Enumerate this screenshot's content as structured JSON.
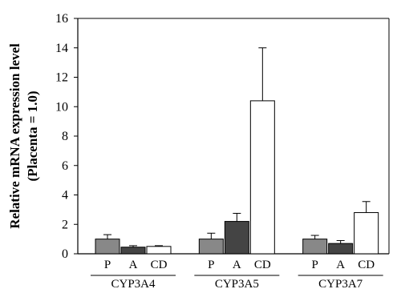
{
  "chart_data": {
    "type": "bar",
    "ylabel": "Relative mRNA expression level",
    "ylabel_sub": "(Placenta = 1.0)",
    "ylim": [
      0,
      16
    ],
    "yticks": [
      0,
      2,
      4,
      6,
      8,
      10,
      12,
      14,
      16
    ],
    "categories": [
      "P",
      "A",
      "CD"
    ],
    "category_colors": [
      "#888888",
      "#444444",
      "#ffffff"
    ],
    "groups": [
      {
        "name": "CYP3A4",
        "values": [
          1.0,
          0.45,
          0.5
        ],
        "errors": [
          0.3,
          0.1,
          0.05
        ]
      },
      {
        "name": "CYP3A5",
        "values": [
          1.0,
          2.2,
          10.4
        ],
        "errors": [
          0.4,
          0.55,
          3.6
        ]
      },
      {
        "name": "CYP3A7",
        "values": [
          1.0,
          0.7,
          2.8
        ],
        "errors": [
          0.25,
          0.2,
          0.75
        ]
      }
    ],
    "grid": false
  }
}
